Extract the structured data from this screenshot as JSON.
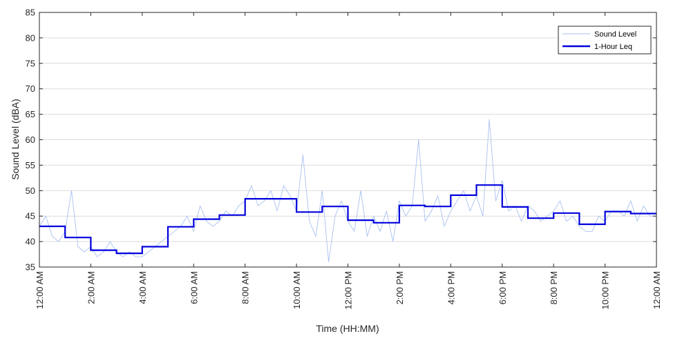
{
  "chart_data": {
    "type": "line",
    "title": "",
    "xlabel": "Time (HH:MM)",
    "ylabel": "Sound Level (dBA)",
    "ylim": [
      35,
      85
    ],
    "yticks": [
      35,
      40,
      45,
      50,
      55,
      60,
      65,
      70,
      75,
      80,
      85
    ],
    "xlim": [
      0,
      24
    ],
    "xticks": [
      0,
      2,
      4,
      6,
      8,
      10,
      12,
      14,
      16,
      18,
      20,
      22,
      24
    ],
    "xtick_labels": [
      "12:00 AM",
      "2:00 AM",
      "4:00 AM",
      "6:00 AM",
      "8:00 AM",
      "10:00 AM",
      "12:00 PM",
      "2:00 PM",
      "4:00 PM",
      "6:00 PM",
      "8:00 PM",
      "10:00 PM",
      "12:00 AM"
    ],
    "grid": true,
    "legend_position": "top-right",
    "series": [
      {
        "name": "Sound Level",
        "color": "#a9c1f0",
        "x": [
          0,
          0.25,
          0.5,
          0.75,
          1,
          1.25,
          1.5,
          1.75,
          2,
          2.25,
          2.5,
          2.75,
          3,
          3.25,
          3.5,
          3.75,
          4,
          4.25,
          4.5,
          4.75,
          5,
          5.25,
          5.5,
          5.75,
          6,
          6.25,
          6.5,
          6.75,
          7,
          7.25,
          7.5,
          7.75,
          8,
          8.25,
          8.5,
          8.75,
          9,
          9.25,
          9.5,
          9.75,
          10,
          10.25,
          10.5,
          10.75,
          11,
          11.25,
          11.5,
          11.75,
          12,
          12.25,
          12.5,
          12.75,
          13,
          13.25,
          13.5,
          13.75,
          14,
          14.25,
          14.5,
          14.75,
          15,
          15.25,
          15.5,
          15.75,
          16,
          16.25,
          16.5,
          16.75,
          17,
          17.25,
          17.5,
          17.75,
          18,
          18.25,
          18.5,
          18.75,
          19,
          19.25,
          19.5,
          19.75,
          20,
          20.25,
          20.5,
          20.75,
          21,
          21.25,
          21.5,
          21.75,
          22,
          22.25,
          22.5,
          22.75,
          23,
          23.25,
          23.5,
          23.75,
          24
        ],
        "y": [
          43,
          45,
          41,
          40,
          42,
          50,
          39,
          38,
          39,
          37,
          38,
          40,
          38,
          37,
          38,
          37,
          37,
          38,
          39,
          40,
          41,
          42,
          43,
          45,
          42,
          47,
          44,
          43,
          44,
          46,
          45,
          47,
          48,
          51,
          47,
          48,
          50,
          46,
          51,
          49,
          46,
          57,
          44,
          41,
          50,
          36,
          45,
          48,
          44,
          42,
          50,
          41,
          45,
          42,
          46,
          40,
          48,
          45,
          47,
          60,
          44,
          46,
          49,
          43,
          46,
          48,
          50,
          46,
          49,
          45,
          64,
          48,
          52,
          46,
          47,
          44,
          47,
          46,
          44,
          45,
          46,
          48,
          44,
          45,
          43,
          42,
          42,
          45,
          44,
          46,
          46,
          45,
          48,
          44,
          47,
          45,
          45
        ]
      },
      {
        "name": "1-Hour Leq",
        "color": "#0000dd",
        "x": [
          0,
          1,
          2,
          3,
          4,
          5,
          6,
          7,
          8,
          9,
          10,
          11,
          12,
          13,
          14,
          15,
          16,
          17,
          18,
          19,
          20,
          21,
          22,
          23
        ],
        "y": [
          43.0,
          40.8,
          38.3,
          37.7,
          39.0,
          42.9,
          44.4,
          45.2,
          48.4,
          48.4,
          45.8,
          46.9,
          44.2,
          43.7,
          47.1,
          46.9,
          49.1,
          51.1,
          46.8,
          44.6,
          45.6,
          43.4,
          45.9,
          45.5
        ]
      }
    ]
  }
}
